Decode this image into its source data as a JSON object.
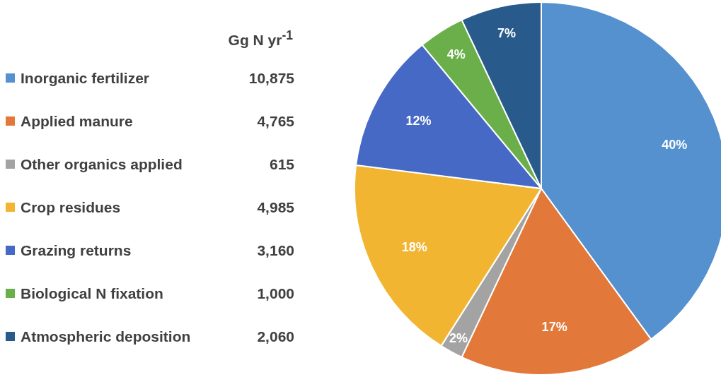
{
  "chart_data": {
    "type": "pie",
    "legend_title": "Gg N yr$^{-1}$",
    "categories": [
      "Inorganic fertilizer",
      "Applied manure",
      "Other organics applied",
      "Crop residues",
      "Grazing returns",
      "Biological N fixation",
      "Atmospheric deposition"
    ],
    "values": [
      40,
      17,
      2,
      18,
      12,
      4,
      7
    ],
    "value_labels": [
      "40%",
      "17%",
      "2%",
      "18%",
      "12%",
      "4%",
      "7%"
    ],
    "colors": [
      "#5590cf",
      "#e2793a",
      "#a3a3a3",
      "#f2b531",
      "#4569c4",
      "#6aaf4a",
      "#285a8c"
    ],
    "annotations": [
      "10,875",
      "4,765",
      "615",
      "4,985",
      "3,160",
      "1,000",
      "2,060"
    ],
    "legend": "left"
  }
}
